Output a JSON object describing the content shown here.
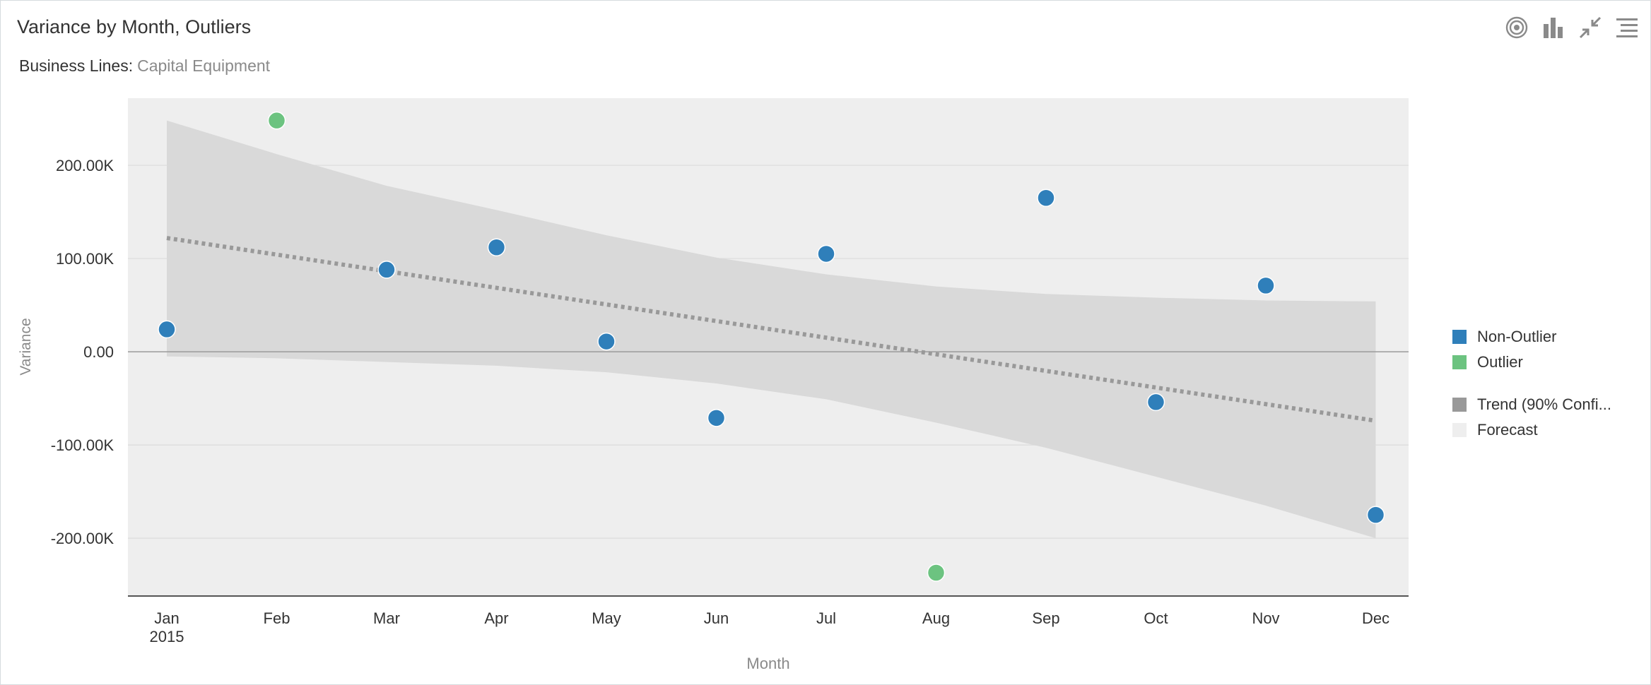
{
  "title": "Variance by Month, Outliers",
  "filter": {
    "label": "Business Lines:",
    "value": "Capital Equipment"
  },
  "toolbar": [
    {
      "name": "target-icon"
    },
    {
      "name": "bar-chart-icon"
    },
    {
      "name": "collapse-icon"
    },
    {
      "name": "menu-icon"
    }
  ],
  "legend": [
    {
      "label": "Non-Outlier",
      "color": "#2f7fba"
    },
    {
      "label": "Outlier",
      "color": "#6cc380"
    },
    {
      "label": "Trend (90% Confi...",
      "color": "#999999"
    },
    {
      "label": "Forecast",
      "color": "#eeeeee"
    }
  ],
  "chart_data": {
    "type": "scatter",
    "xlabel": "Month",
    "ylabel": "Variance",
    "categories": [
      "Jan",
      "Feb",
      "Mar",
      "Apr",
      "May",
      "Jun",
      "Jul",
      "Aug",
      "Sep",
      "Oct",
      "Nov",
      "Dec"
    ],
    "year_label": "2015",
    "yticks": [
      "200.00K",
      "100.00K",
      "0.00",
      "-100.00K",
      "-200.00K"
    ],
    "ytick_values": [
      200000,
      100000,
      0,
      -100000,
      -200000
    ],
    "ylim": [
      -262000,
      272000
    ],
    "series": [
      {
        "name": "Non-Outlier",
        "color": "#2f7fba",
        "points": [
          {
            "x": "Jan",
            "y": 24000
          },
          {
            "x": "Mar",
            "y": 88000
          },
          {
            "x": "Apr",
            "y": 112000
          },
          {
            "x": "May",
            "y": 11000
          },
          {
            "x": "Jun",
            "y": -71000
          },
          {
            "x": "Jul",
            "y": 105000
          },
          {
            "x": "Sep",
            "y": 165000
          },
          {
            "x": "Oct",
            "y": -54000
          },
          {
            "x": "Nov",
            "y": 71000
          },
          {
            "x": "Dec",
            "y": -175000
          }
        ]
      },
      {
        "name": "Outlier",
        "color": "#6cc380",
        "points": [
          {
            "x": "Feb",
            "y": 248000
          },
          {
            "x": "Aug",
            "y": -237000
          }
        ]
      }
    ],
    "trend": {
      "name": "Trend (90% Confi...",
      "color": "#999999",
      "start": 122000,
      "end": -74000
    },
    "confidence_band": {
      "upper": [
        248000,
        212000,
        178000,
        152000,
        125000,
        101000,
        83000,
        70000,
        62000,
        58000,
        55000,
        54000
      ],
      "lower": [
        -5000,
        -7000,
        -11000,
        -15000,
        -22000,
        -34000,
        -51000,
        -76000,
        -103000,
        -134000,
        -165000,
        -200000
      ]
    },
    "forecast_band": {
      "name": "Forecast",
      "color": "#eeeeee"
    },
    "grid": true,
    "legend_position": "right"
  }
}
